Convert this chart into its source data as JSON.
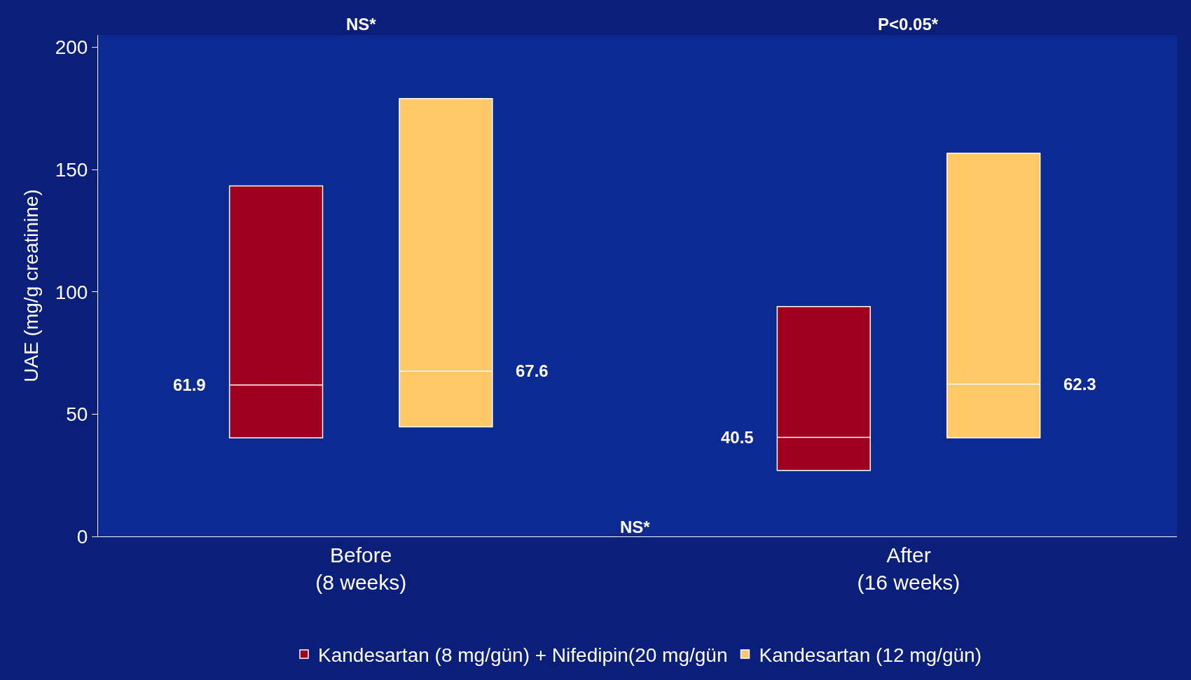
{
  "chart_data": {
    "type": "box",
    "ylabel": "UAE (mg/g creatinine)",
    "categories": [
      "Before\n(8 weeks)",
      "After\n(16 weeks)"
    ],
    "series": [
      {
        "name": "Kandesartan (8 mg/gün) + Nifedipin(20 mg/gün",
        "color": "#a00020",
        "value_labels": [
          "61.9",
          "40.5"
        ],
        "boxes": [
          {
            "q1": 40.3,
            "median": 61.9,
            "q3": 143.3
          },
          {
            "q1": 27,
            "median": 40.5,
            "q3": 94
          }
        ]
      },
      {
        "name": "Kandesartan (12 mg/gün)",
        "color": "#fdc865",
        "value_labels": [
          "67.6",
          "62.3"
        ],
        "boxes": [
          {
            "q1": 44.8,
            "median": 67.6,
            "q3": 179
          },
          {
            "q1": 40.3,
            "median": 62.3,
            "q3": 156.7
          }
        ]
      }
    ],
    "ylim": [
      0,
      205
    ],
    "yticks": [
      0,
      50,
      100,
      150,
      200
    ],
    "grid": false,
    "legend": "bottom",
    "annotations": [
      "NS*",
      "P<0.05*",
      "NS*"
    ]
  }
}
